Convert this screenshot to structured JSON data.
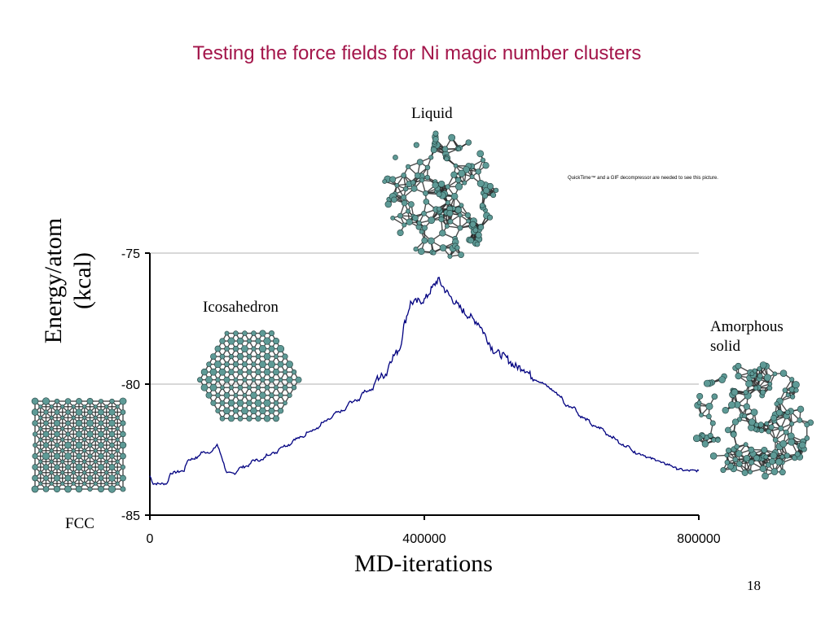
{
  "slide": {
    "title": "Testing the force fields for Ni magic number clusters",
    "page_number": "18",
    "quicktime_note": "QuickTime™ and a GIF decompressor are needed to see this picture."
  },
  "clusters": {
    "liquid": "Liquid",
    "icosahedron": "Icosahedron",
    "amorphous_line1": "Amorphous",
    "amorphous_line2": "solid",
    "fcc": "FCC"
  },
  "colors": {
    "title": "#a3154a",
    "series": "#000080",
    "atom_fill": "#5e9a96",
    "bond": "#2b2b2b",
    "grid": "#b0b0b0"
  },
  "chart_data": {
    "type": "line",
    "title": "",
    "xlabel": "MD-iterations",
    "ylabel": "Energy/atom (kcal)",
    "xlim": [
      0,
      800000
    ],
    "ylim": [
      -85,
      -75
    ],
    "xticks": [
      "0",
      "400000",
      "800000"
    ],
    "yticks": [
      "-75",
      "-80",
      "-85"
    ],
    "grid": true,
    "series": [
      {
        "x": [
          0,
          5000,
          25000,
          30000,
          50000,
          55000,
          70000,
          75000,
          90000,
          98000,
          105000,
          112000,
          125000,
          130000,
          145000,
          150000,
          165000,
          170000,
          185000,
          190000,
          205000,
          210000,
          225000,
          230000,
          245000,
          250000,
          265000,
          270000,
          285000,
          290000,
          305000,
          310000,
          325000,
          330000,
          345000,
          350000,
          365000,
          370000,
          380000,
          400000,
          410000,
          420000,
          430000,
          445000,
          460000,
          480000,
          490000,
          500000,
          520000,
          530000,
          545000,
          560000,
          575000,
          585000,
          600000,
          605000,
          620000,
          625000,
          640000,
          645000,
          660000,
          665000,
          680000,
          685000,
          700000,
          705000,
          720000,
          725000,
          740000,
          745000,
          760000,
          765000,
          780000,
          800000
        ],
        "y": [
          -83.5,
          -83.8,
          -83.8,
          -83.4,
          -83.3,
          -82.9,
          -82.8,
          -82.6,
          -82.6,
          -82.3,
          -82.8,
          -83.4,
          -83.4,
          -83.2,
          -83.1,
          -82.9,
          -82.9,
          -82.7,
          -82.6,
          -82.4,
          -82.3,
          -82.1,
          -82.0,
          -81.8,
          -81.7,
          -81.5,
          -81.3,
          -81.1,
          -81.0,
          -80.7,
          -80.6,
          -80.3,
          -80.2,
          -79.8,
          -79.6,
          -79.1,
          -78.6,
          -77.8,
          -76.9,
          -76.8,
          -76.4,
          -76.0,
          -76.4,
          -76.9,
          -77.3,
          -77.7,
          -78.2,
          -78.7,
          -79.0,
          -79.3,
          -79.4,
          -79.8,
          -80.0,
          -80.2,
          -80.5,
          -80.8,
          -80.9,
          -81.2,
          -81.4,
          -81.6,
          -81.7,
          -81.9,
          -82.1,
          -82.3,
          -82.4,
          -82.6,
          -82.7,
          -82.8,
          -82.9,
          -83.0,
          -83.1,
          -83.2,
          -83.3,
          -83.3
        ]
      }
    ]
  }
}
